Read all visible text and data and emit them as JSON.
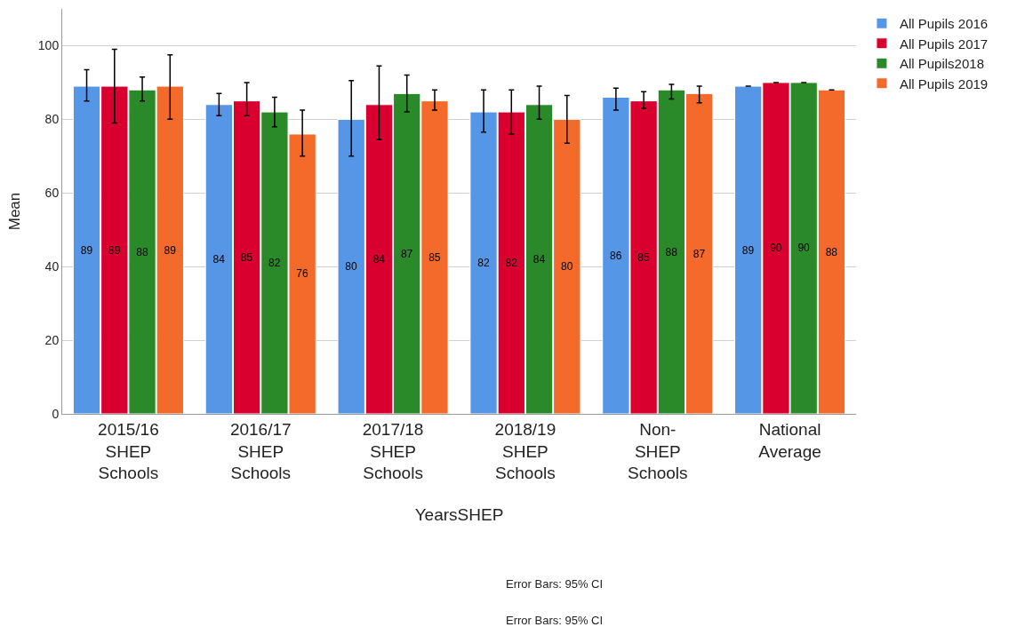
{
  "chart_data": {
    "type": "bar",
    "xlabel": "YearsSHEP",
    "ylabel": "Mean",
    "categories": [
      "2015/16 SHEP Schools",
      "2016/17 SHEP Schools",
      "2017/18 SHEP Schools",
      "2018/19 SHEP Schools",
      "Non-SHEP Schools",
      "National Average"
    ],
    "series": [
      {
        "name": "All Pupils 2016",
        "color": "#5596e6",
        "values": [
          89,
          84,
          80,
          82,
          86,
          89
        ],
        "errors": [
          [
            85,
            93.5
          ],
          [
            81,
            87
          ],
          [
            70,
            90.5
          ],
          [
            76.5,
            88
          ],
          [
            82.5,
            88.5
          ],
          null
        ]
      },
      {
        "name": "All Pupils 2017",
        "color": "#d9002f",
        "values": [
          89,
          85,
          84,
          82,
          85,
          90
        ],
        "errors": [
          [
            79,
            99
          ],
          [
            81,
            90
          ],
          [
            74.5,
            94.5
          ],
          [
            76,
            88
          ],
          [
            83,
            87.5
          ],
          null
        ]
      },
      {
        "name": "All Pupils2018",
        "color": "#2a8a2a",
        "values": [
          88,
          82,
          87,
          84,
          88,
          90
        ],
        "errors": [
          [
            85,
            91.5
          ],
          [
            78,
            86
          ],
          [
            82,
            92
          ],
          [
            80,
            89
          ],
          [
            85.5,
            89.5
          ],
          null
        ]
      },
      {
        "name": "All Pupils 2019",
        "color": "#f36a2a",
        "values": [
          89,
          76,
          85,
          80,
          87,
          88
        ],
        "errors": [
          [
            80,
            97.5
          ],
          [
            70,
            82.5
          ],
          [
            82.5,
            88
          ],
          [
            73.5,
            86.5
          ],
          [
            84.5,
            89
          ],
          null
        ]
      }
    ],
    "ylim": [
      0,
      110
    ],
    "yticks": [
      0,
      20,
      40,
      60,
      80,
      100
    ],
    "grid": "y",
    "legend": "top right",
    "data_labels": true,
    "annotations": [
      "Error Bars: 95% CI",
      "Error Bars: 95% CI"
    ]
  }
}
